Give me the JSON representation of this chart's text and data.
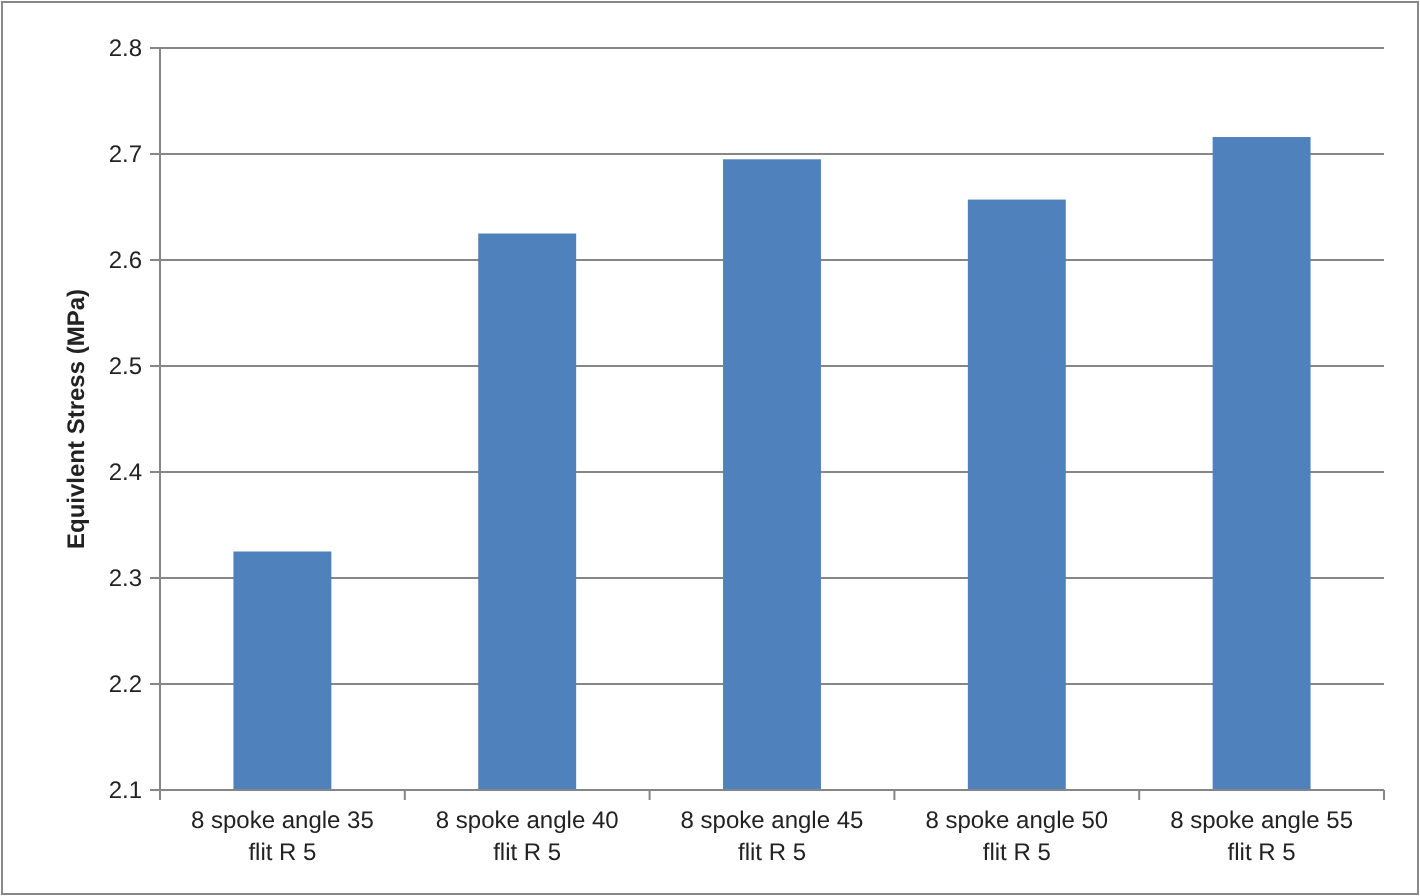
{
  "chart_data": {
    "type": "bar",
    "ylabel": "Equivlent Stress (MPa)",
    "categories": [
      "8 spoke angle 35 flit R 5",
      "8 spoke angle 40 flit R 5",
      "8 spoke angle 45 flit R 5",
      "8 spoke angle 50 flit R 5",
      "8 spoke angle 55 flit R 5"
    ],
    "values": [
      2.325,
      2.625,
      2.695,
      2.657,
      2.716
    ],
    "color": "#4f81bd",
    "ylim": [
      2.1,
      2.8
    ],
    "yticks": [
      2.1,
      2.2,
      2.3,
      2.4,
      2.5,
      2.6,
      2.7,
      2.8
    ],
    "grid": "y"
  }
}
